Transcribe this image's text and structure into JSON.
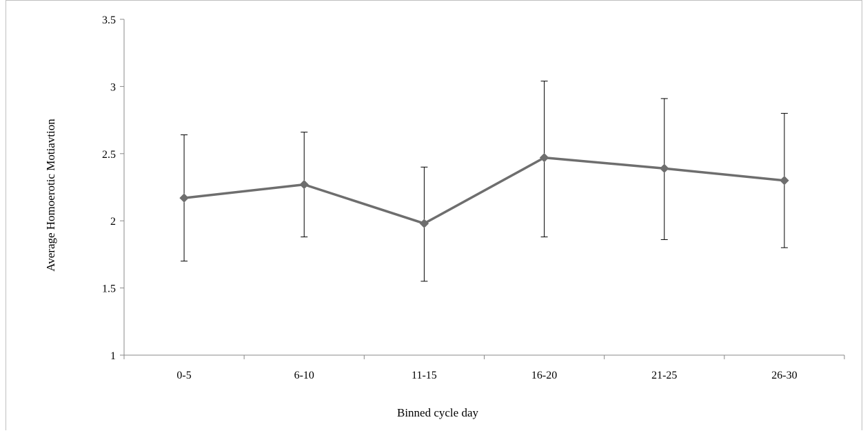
{
  "chart_data": {
    "type": "line",
    "title": "",
    "xlabel": "Binned cycle day",
    "ylabel": "Average Homoerotic Motiavtion",
    "categories": [
      "0-5",
      "6-10",
      "11-15",
      "16-20",
      "21-25",
      "26-30"
    ],
    "ylim": [
      1,
      3.5
    ],
    "yticks": [
      1,
      1.5,
      2,
      2.5,
      3,
      3.5
    ],
    "grid": false,
    "legend": "none",
    "series": [
      {
        "values": [
          2.17,
          2.27,
          1.98,
          2.47,
          2.39,
          2.3
        ],
        "error_upper": [
          2.64,
          2.66,
          2.4,
          3.04,
          2.91,
          2.8
        ],
        "error_lower": [
          1.7,
          1.88,
          1.55,
          1.88,
          1.86,
          1.8
        ],
        "color": "#6e6e6e",
        "marker": "diamond"
      }
    ],
    "axis_color": "#888888",
    "errorbar_color": "#000000"
  }
}
